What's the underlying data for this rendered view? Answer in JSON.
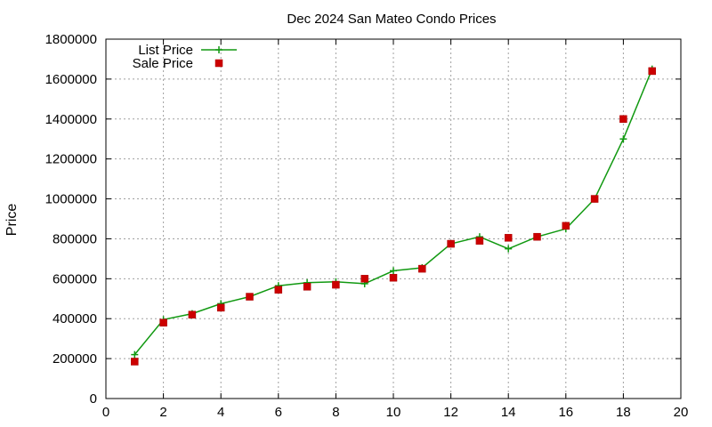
{
  "chart_data": {
    "type": "line",
    "title": "Dec 2024 San Mateo Condo Prices",
    "xlabel": "",
    "ylabel": "Price",
    "xlim": [
      0,
      20
    ],
    "ylim": [
      0,
      1800000
    ],
    "x_ticks": [
      "0",
      "2",
      "4",
      "6",
      "8",
      "10",
      "12",
      "14",
      "16",
      "18",
      "20"
    ],
    "y_ticks": [
      "0",
      "200000",
      "400000",
      "600000",
      "800000",
      "1000000",
      "1200000",
      "1400000",
      "1600000",
      "1800000"
    ],
    "grid": true,
    "legend_position": "top-left",
    "series": [
      {
        "name": "List Price",
        "style": "line+cross",
        "color": "#119911",
        "x": [
          1,
          2,
          3,
          4,
          5,
          6,
          7,
          8,
          9,
          10,
          11,
          12,
          13,
          14,
          15,
          16,
          17,
          18,
          19
        ],
        "y": [
          220000,
          395000,
          425000,
          475000,
          510000,
          565000,
          580000,
          585000,
          575000,
          640000,
          655000,
          775000,
          810000,
          750000,
          810000,
          850000,
          1000000,
          1300000,
          1650000
        ]
      },
      {
        "name": "Sale Price",
        "style": "square",
        "color": "#cc0000",
        "x": [
          1,
          2,
          3,
          4,
          5,
          6,
          7,
          8,
          9,
          10,
          11,
          12,
          13,
          14,
          15,
          16,
          17,
          18,
          19
        ],
        "y": [
          185000,
          380000,
          420000,
          455000,
          510000,
          545000,
          560000,
          570000,
          600000,
          605000,
          650000,
          775000,
          790000,
          805000,
          810000,
          865000,
          1000000,
          1400000,
          1640000
        ]
      }
    ]
  }
}
